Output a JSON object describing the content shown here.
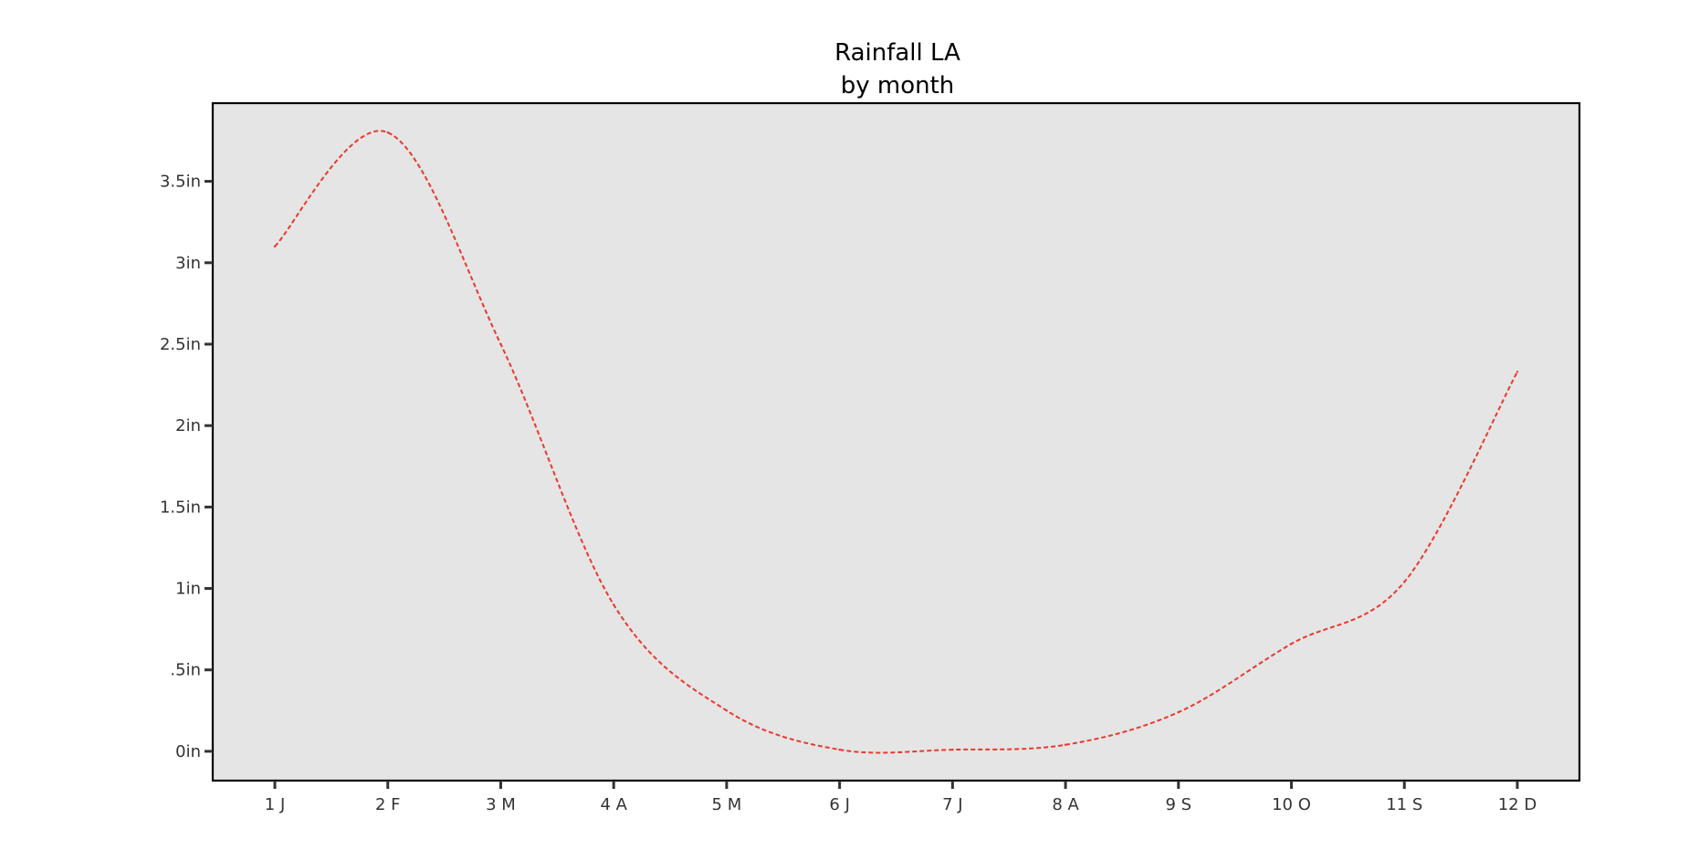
{
  "chart_data": {
    "type": "line",
    "title": [
      "Rainfall LA",
      "by month"
    ],
    "xlabel": "",
    "ylabel": "",
    "x": [
      1,
      2,
      3,
      4,
      5,
      6,
      7,
      8,
      9,
      10,
      11,
      12
    ],
    "x_tick_labels": [
      "1 J",
      "2 F",
      "3 M",
      "4 A",
      "5 M",
      "6 J",
      "7 J",
      "8 A",
      "9 S",
      "10 O",
      "11 S",
      "12 D"
    ],
    "y_ticks": [
      0,
      0.5,
      1,
      1.5,
      2,
      2.5,
      3,
      3.5
    ],
    "y_tick_labels": [
      "0in",
      ".5in",
      "1in",
      "1.5in",
      "2in",
      "2.5in",
      "3in",
      "3.5in"
    ],
    "xlim": [
      0.45,
      12.55
    ],
    "ylim": [
      -0.18,
      3.98
    ],
    "grid": false,
    "series": [
      {
        "values": [
          3.1,
          3.8,
          2.5,
          0.9,
          0.25,
          0.01,
          0.01,
          0.04,
          0.24,
          0.66,
          1.04,
          2.33
        ],
        "color": "#e8392f",
        "style": "dashed"
      }
    ],
    "background": "#e5e5e5"
  }
}
